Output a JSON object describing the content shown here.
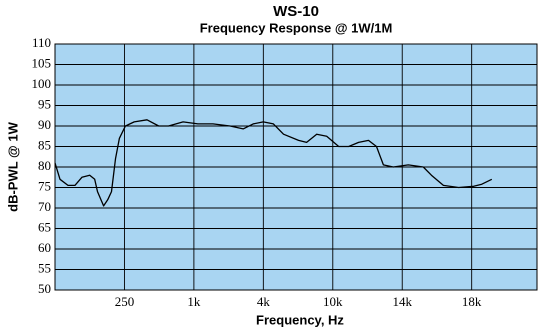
{
  "chart_data": {
    "type": "line",
    "title": "WS-10",
    "subtitle": "Frequency Response @ 1W/1M",
    "x_label": "Frequency, Hz",
    "y_label": "dB-PWL @ 1W",
    "x": [
      62.5,
      69,
      81,
      93,
      107,
      125,
      138,
      146,
      165,
      179,
      193,
      209,
      226,
      255,
      304,
      392,
      495,
      602,
      806,
      1084,
      1465,
      2060,
      2675,
      3270,
      4000,
      4570,
      5216,
      6368,
      7080,
      8087,
      9228,
      10292,
      10800,
      11330,
      11890,
      12360,
      12780,
      13410,
      14310,
      15110,
      15560,
      16250,
      17170,
      18130,
      18670,
      19360
    ],
    "series": [
      {
        "name": "WS-10",
        "color": "#000000",
        "values": [
          81,
          77,
          75.5,
          75.5,
          77.5,
          78,
          77,
          74,
          70.5,
          72,
          74,
          82,
          87,
          90,
          91,
          91.5,
          90,
          90,
          91,
          90.5,
          90.5,
          90,
          89.3,
          90.5,
          91,
          90.5,
          88,
          86.5,
          86,
          88,
          87.5,
          85,
          85,
          86,
          86.5,
          85,
          80.5,
          80,
          80.5,
          80,
          78,
          75.5,
          75,
          75.3,
          75.8,
          77
        ]
      }
    ],
    "xlim": [
      62.5,
      22800
    ],
    "xticks": [
      250,
      {
        "value": 1000,
        "label": "1k"
      },
      {
        "value": 4000,
        "label": "4k"
      },
      {
        "value": 10000,
        "label": "10k"
      },
      {
        "value": 14000,
        "label": "14k"
      },
      {
        "value": 18000,
        "label": "18k"
      }
    ],
    "ylim": [
      50,
      110
    ],
    "yticks": [
      50,
      55,
      60,
      65,
      70,
      75,
      80,
      85,
      90,
      95,
      100,
      105,
      110
    ],
    "grid": true,
    "background": "#a9d5f2"
  }
}
